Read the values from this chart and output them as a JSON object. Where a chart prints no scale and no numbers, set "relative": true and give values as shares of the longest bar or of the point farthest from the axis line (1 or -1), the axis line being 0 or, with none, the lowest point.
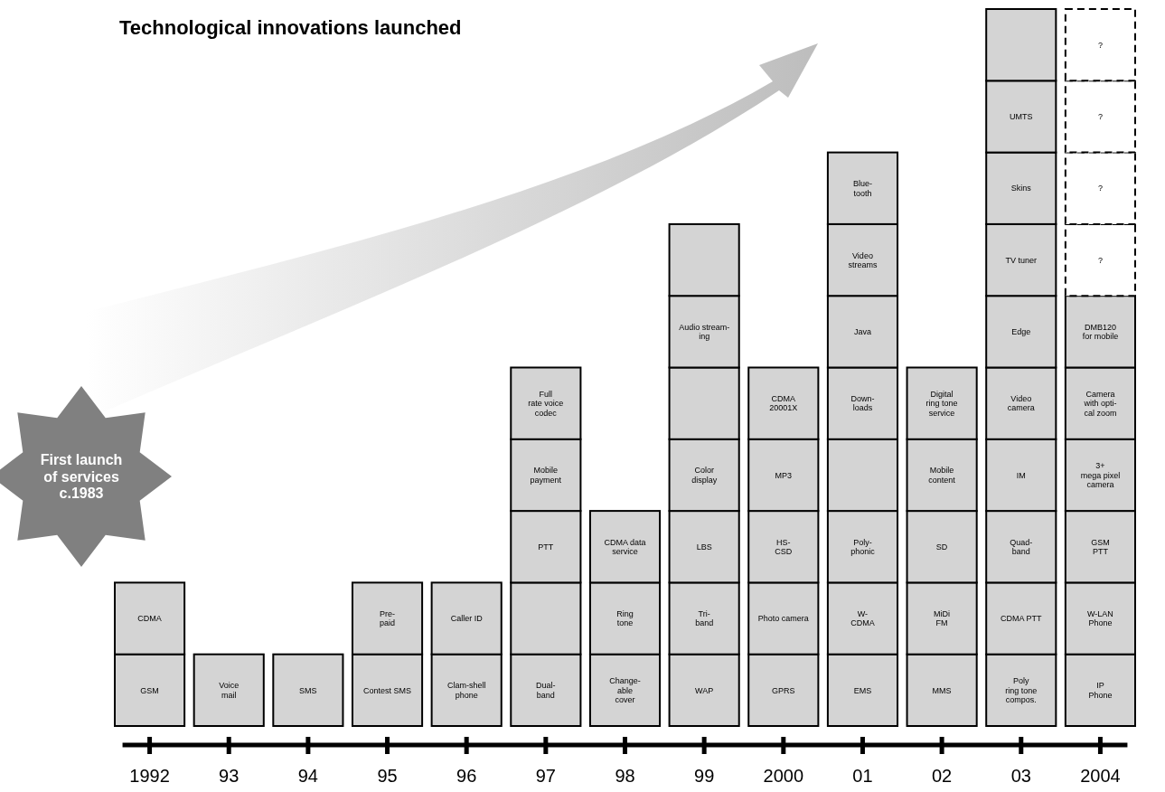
{
  "chart_data": {
    "type": "bar",
    "title": "Technological innovations launched",
    "stacked": true,
    "relative": true,
    "categories": [
      "1992",
      "93",
      "94",
      "95",
      "96",
      "97",
      "98",
      "99",
      "2000",
      "01",
      "02",
      "03",
      "2004"
    ],
    "annotations": [
      "First launch\nof services\nc.1983"
    ],
    "series": [
      {
        "name": "GSM",
        "color": "#d4d4d4",
        "values": [
          0.1,
          null,
          null,
          null,
          null,
          null,
          null,
          null,
          null,
          null,
          null,
          null,
          null
        ]
      },
      {
        "name": "CDMA",
        "color": "#d4d4d4",
        "values": [
          0.1,
          null,
          null,
          null,
          null,
          null,
          null,
          null,
          null,
          null,
          null,
          null,
          null
        ]
      },
      {
        "name": "Voice\nmail",
        "color": "#d4d4d4",
        "values": [
          null,
          0.1,
          null,
          null,
          null,
          null,
          null,
          null,
          null,
          null,
          null,
          null,
          null
        ]
      },
      {
        "name": "SMS",
        "color": "#d4d4d4",
        "values": [
          null,
          null,
          0.1,
          null,
          null,
          null,
          null,
          null,
          null,
          null,
          null,
          null,
          null
        ]
      },
      {
        "name": "Contest SMS",
        "color": "#d4d4d4",
        "values": [
          null,
          null,
          null,
          0.1,
          null,
          null,
          null,
          null,
          null,
          null,
          null,
          null,
          null
        ]
      },
      {
        "name": "Pre-\npaid",
        "color": "#d4d4d4",
        "values": [
          null,
          null,
          null,
          0.1,
          null,
          null,
          null,
          null,
          null,
          null,
          null,
          null,
          null
        ]
      },
      {
        "name": "Clam-shell\nphone",
        "color": "#d4d4d4",
        "values": [
          null,
          null,
          null,
          null,
          0.1,
          null,
          null,
          null,
          null,
          null,
          null,
          null,
          null
        ]
      },
      {
        "name": "Caller ID",
        "color": "#d4d4d4",
        "values": [
          null,
          null,
          null,
          null,
          0.1,
          null,
          null,
          null,
          null,
          null,
          null,
          null,
          null
        ]
      },
      {
        "name": "Dual-\nband",
        "color": "#d4d4d4",
        "values": [
          null,
          null,
          null,
          null,
          null,
          0.1,
          null,
          null,
          null,
          null,
          null,
          null,
          null
        ]
      },
      {
        "color": "#d4d4d4",
        "values": [
          null,
          null,
          null,
          null,
          null,
          0.1,
          null,
          null,
          null,
          null,
          null,
          null,
          null
        ]
      },
      {
        "name": "PTT",
        "color": "#d4d4d4",
        "values": [
          null,
          null,
          null,
          null,
          null,
          0.1,
          null,
          null,
          null,
          null,
          null,
          null,
          null
        ]
      },
      {
        "name": "Mobile\npayment",
        "color": "#d4d4d4",
        "values": [
          null,
          null,
          null,
          null,
          null,
          0.1,
          null,
          null,
          null,
          null,
          null,
          null,
          null
        ]
      },
      {
        "name": "Full\nrate voice\ncodec",
        "color": "#d4d4d4",
        "values": [
          null,
          null,
          null,
          null,
          null,
          0.1,
          null,
          null,
          null,
          null,
          null,
          null,
          null
        ]
      },
      {
        "name": "Change-\nable\ncover",
        "color": "#d4d4d4",
        "values": [
          null,
          null,
          null,
          null,
          null,
          null,
          0.1,
          null,
          null,
          null,
          null,
          null,
          null
        ]
      },
      {
        "name": "Ring\ntone",
        "color": "#d4d4d4",
        "values": [
          null,
          null,
          null,
          null,
          null,
          null,
          0.1,
          null,
          null,
          null,
          null,
          null,
          null
        ]
      },
      {
        "name": "CDMA data\nservice",
        "color": "#d4d4d4",
        "values": [
          null,
          null,
          null,
          null,
          null,
          null,
          0.1,
          null,
          null,
          null,
          null,
          null,
          null
        ]
      },
      {
        "name": "WAP",
        "color": "#d4d4d4",
        "values": [
          null,
          null,
          null,
          null,
          null,
          null,
          null,
          0.1,
          null,
          null,
          null,
          null,
          null
        ]
      },
      {
        "name": "Tri-\nband",
        "color": "#d4d4d4",
        "values": [
          null,
          null,
          null,
          null,
          null,
          null,
          null,
          0.1,
          null,
          null,
          null,
          null,
          null
        ]
      },
      {
        "name": "LBS",
        "color": "#d4d4d4",
        "values": [
          null,
          null,
          null,
          null,
          null,
          null,
          null,
          0.1,
          null,
          null,
          null,
          null,
          null
        ]
      },
      {
        "name": "Color\ndisplay",
        "color": "#d4d4d4",
        "values": [
          null,
          null,
          null,
          null,
          null,
          null,
          null,
          0.1,
          null,
          null,
          null,
          null,
          null
        ]
      },
      {
        "color": "#d4d4d4",
        "values": [
          null,
          null,
          null,
          null,
          null,
          null,
          null,
          0.1,
          null,
          null,
          null,
          null,
          null
        ]
      },
      {
        "name": "Audio stream-\ning",
        "color": "#d4d4d4",
        "values": [
          null,
          null,
          null,
          null,
          null,
          null,
          null,
          0.1,
          null,
          null,
          null,
          null,
          null
        ]
      },
      {
        "color": "#d4d4d4",
        "values": [
          null,
          null,
          null,
          null,
          null,
          null,
          null,
          0.1,
          null,
          null,
          null,
          null,
          null
        ]
      },
      {
        "name": "GPRS",
        "color": "#d4d4d4",
        "values": [
          null,
          null,
          null,
          null,
          null,
          null,
          null,
          null,
          0.1,
          null,
          null,
          null,
          null
        ]
      },
      {
        "name": "Photo camera",
        "color": "#d4d4d4",
        "values": [
          null,
          null,
          null,
          null,
          null,
          null,
          null,
          null,
          0.1,
          null,
          null,
          null,
          null
        ]
      },
      {
        "name": "HS-\nCSD",
        "color": "#d4d4d4",
        "values": [
          null,
          null,
          null,
          null,
          null,
          null,
          null,
          null,
          0.1,
          null,
          null,
          null,
          null
        ]
      },
      {
        "name": "MP3",
        "color": "#d4d4d4",
        "values": [
          null,
          null,
          null,
          null,
          null,
          null,
          null,
          null,
          0.1,
          null,
          null,
          null,
          null
        ]
      },
      {
        "name": "CDMA\n20001X",
        "color": "#d4d4d4",
        "values": [
          null,
          null,
          null,
          null,
          null,
          null,
          null,
          null,
          0.1,
          null,
          null,
          null,
          null
        ]
      },
      {
        "name": "EMS",
        "color": "#d4d4d4",
        "values": [
          null,
          null,
          null,
          null,
          null,
          null,
          null,
          null,
          null,
          0.1,
          null,
          null,
          null
        ]
      },
      {
        "name": "W-\nCDMA",
        "color": "#d4d4d4",
        "values": [
          null,
          null,
          null,
          null,
          null,
          null,
          null,
          null,
          null,
          0.1,
          null,
          null,
          null
        ]
      },
      {
        "name": "Poly-\nphonic",
        "color": "#d4d4d4",
        "values": [
          null,
          null,
          null,
          null,
          null,
          null,
          null,
          null,
          null,
          0.1,
          null,
          null,
          null
        ]
      },
      {
        "color": "#d4d4d4",
        "values": [
          null,
          null,
          null,
          null,
          null,
          null,
          null,
          null,
          null,
          0.1,
          null,
          null,
          null
        ]
      },
      {
        "name": "Down-\nloads",
        "color": "#d4d4d4",
        "values": [
          null,
          null,
          null,
          null,
          null,
          null,
          null,
          null,
          null,
          0.1,
          null,
          null,
          null
        ]
      },
      {
        "name": "Java",
        "color": "#d4d4d4",
        "values": [
          null,
          null,
          null,
          null,
          null,
          null,
          null,
          null,
          null,
          0.1,
          null,
          null,
          null
        ]
      },
      {
        "name": "Video\nstreams",
        "color": "#d4d4d4",
        "values": [
          null,
          null,
          null,
          null,
          null,
          null,
          null,
          null,
          null,
          0.1,
          null,
          null,
          null
        ]
      },
      {
        "name": "Blue-\ntooth",
        "color": "#d4d4d4",
        "values": [
          null,
          null,
          null,
          null,
          null,
          null,
          null,
          null,
          null,
          0.1,
          null,
          null,
          null
        ]
      },
      {
        "name": "MMS",
        "color": "#d4d4d4",
        "values": [
          null,
          null,
          null,
          null,
          null,
          null,
          null,
          null,
          null,
          null,
          0.1,
          null,
          null
        ]
      },
      {
        "name": "MiDi\nFM",
        "color": "#d4d4d4",
        "values": [
          null,
          null,
          null,
          null,
          null,
          null,
          null,
          null,
          null,
          null,
          0.1,
          null,
          null
        ]
      },
      {
        "name": "SD",
        "color": "#d4d4d4",
        "values": [
          null,
          null,
          null,
          null,
          null,
          null,
          null,
          null,
          null,
          null,
          0.1,
          null,
          null
        ]
      },
      {
        "name": "Mobile\ncontent",
        "color": "#d4d4d4",
        "values": [
          null,
          null,
          null,
          null,
          null,
          null,
          null,
          null,
          null,
          null,
          0.1,
          null,
          null
        ]
      },
      {
        "name": "Digital\nring tone\nservice",
        "color": "#d4d4d4",
        "values": [
          null,
          null,
          null,
          null,
          null,
          null,
          null,
          null,
          null,
          null,
          0.1,
          null,
          null
        ]
      },
      {
        "name": "Poly\nring tone\ncompos.",
        "color": "#d4d4d4",
        "values": [
          null,
          null,
          null,
          null,
          null,
          null,
          null,
          null,
          null,
          null,
          null,
          0.1,
          null
        ]
      },
      {
        "name": "CDMA PTT",
        "color": "#d4d4d4",
        "values": [
          null,
          null,
          null,
          null,
          null,
          null,
          null,
          null,
          null,
          null,
          null,
          0.1,
          null
        ]
      },
      {
        "name": "Quad-\nband",
        "color": "#d4d4d4",
        "values": [
          null,
          null,
          null,
          null,
          null,
          null,
          null,
          null,
          null,
          null,
          null,
          0.1,
          null
        ]
      },
      {
        "name": "IM",
        "color": "#d4d4d4",
        "values": [
          null,
          null,
          null,
          null,
          null,
          null,
          null,
          null,
          null,
          null,
          null,
          0.1,
          null
        ]
      },
      {
        "name": "Video\ncamera",
        "color": "#d4d4d4",
        "values": [
          null,
          null,
          null,
          null,
          null,
          null,
          null,
          null,
          null,
          null,
          null,
          0.1,
          null
        ]
      },
      {
        "name": "Edge",
        "color": "#d4d4d4",
        "values": [
          null,
          null,
          null,
          null,
          null,
          null,
          null,
          null,
          null,
          null,
          null,
          0.1,
          null
        ]
      },
      {
        "name": "TV tuner",
        "color": "#d4d4d4",
        "values": [
          null,
          null,
          null,
          null,
          null,
          null,
          null,
          null,
          null,
          null,
          null,
          0.1,
          null
        ]
      },
      {
        "name": "Skins",
        "color": "#d4d4d4",
        "values": [
          null,
          null,
          null,
          null,
          null,
          null,
          null,
          null,
          null,
          null,
          null,
          0.1,
          null
        ]
      },
      {
        "name": "UMTS",
        "color": "#d4d4d4",
        "values": [
          null,
          null,
          null,
          null,
          null,
          null,
          null,
          null,
          null,
          null,
          null,
          0.1,
          null
        ]
      },
      {
        "color": "#d4d4d4",
        "values": [
          null,
          null,
          null,
          null,
          null,
          null,
          null,
          null,
          null,
          null,
          null,
          0.1,
          null
        ]
      },
      {
        "name": "IP\nPhone",
        "color": "#d4d4d4",
        "values": [
          null,
          null,
          null,
          null,
          null,
          null,
          null,
          null,
          null,
          null,
          null,
          null,
          0.1
        ]
      },
      {
        "name": "W-LAN\nPhone",
        "color": "#d4d4d4",
        "values": [
          null,
          null,
          null,
          null,
          null,
          null,
          null,
          null,
          null,
          null,
          null,
          null,
          0.1
        ]
      },
      {
        "name": "GSM\nPTT",
        "color": "#d4d4d4",
        "values": [
          null,
          null,
          null,
          null,
          null,
          null,
          null,
          null,
          null,
          null,
          null,
          null,
          0.1
        ]
      },
      {
        "name": "3+\nmega pixel\ncamera",
        "color": "#d4d4d4",
        "values": [
          null,
          null,
          null,
          null,
          null,
          null,
          null,
          null,
          null,
          null,
          null,
          null,
          0.1
        ]
      },
      {
        "name": "Camera\nwith opti-\ncal zoom",
        "color": "#d4d4d4",
        "values": [
          null,
          null,
          null,
          null,
          null,
          null,
          null,
          null,
          null,
          null,
          null,
          null,
          0.1
        ]
      },
      {
        "name": "DMB120\nfor mobile",
        "color": "#d4d4d4",
        "values": [
          null,
          null,
          null,
          null,
          null,
          null,
          null,
          null,
          null,
          null,
          null,
          null,
          0.1
        ]
      },
      {
        "name": "?",
        "color": "#ffffff",
        "line_style": "dashed",
        "values": [
          null,
          null,
          null,
          null,
          null,
          null,
          null,
          null,
          null,
          null,
          null,
          null,
          0.1
        ]
      },
      {
        "name": "?",
        "color": "#ffffff",
        "line_style": "dashed",
        "values": [
          null,
          null,
          null,
          null,
          null,
          null,
          null,
          null,
          null,
          null,
          null,
          null,
          0.1
        ]
      },
      {
        "name": "?",
        "color": "#ffffff",
        "line_style": "dashed",
        "values": [
          null,
          null,
          null,
          null,
          null,
          null,
          null,
          null,
          null,
          null,
          null,
          null,
          0.1
        ]
      },
      {
        "name": "?",
        "color": "#ffffff",
        "line_style": "dashed",
        "values": [
          null,
          null,
          null,
          null,
          null,
          null,
          null,
          null,
          null,
          null,
          null,
          null,
          0.1
        ]
      }
    ]
  }
}
